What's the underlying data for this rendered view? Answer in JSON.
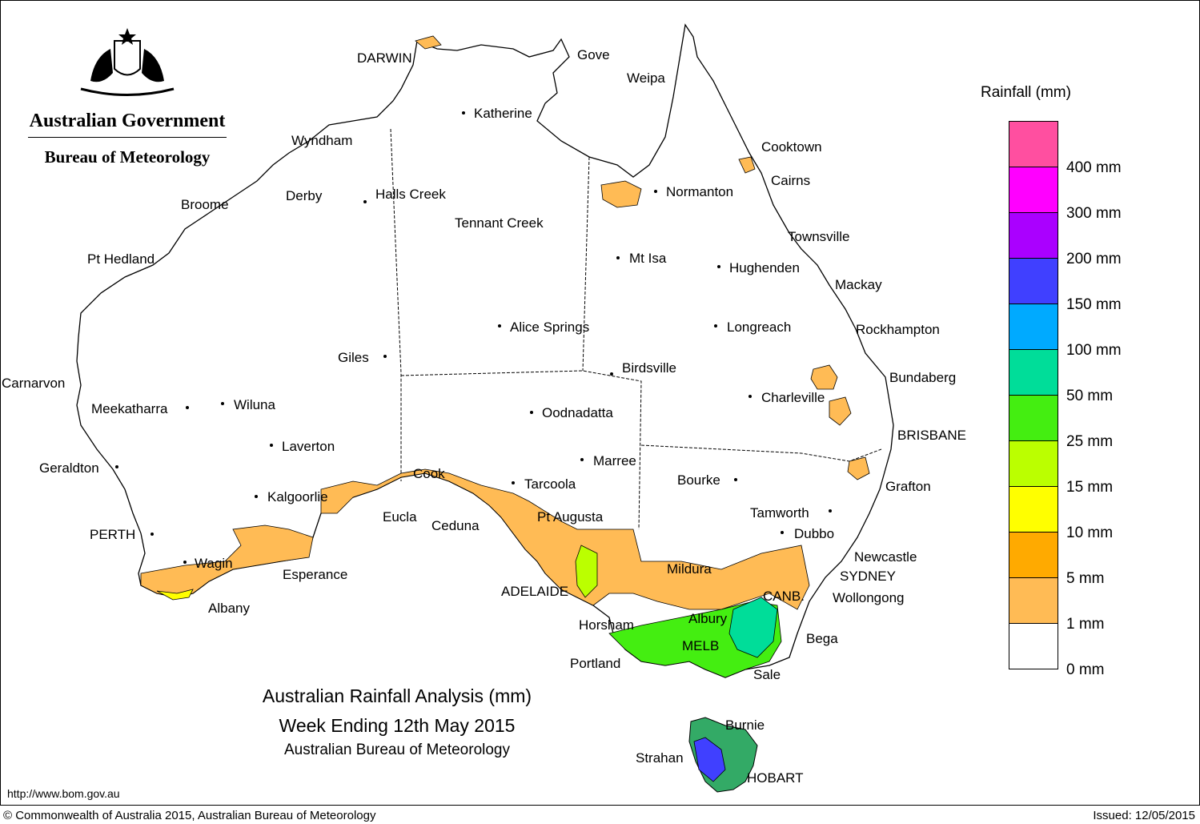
{
  "header": {
    "government": "Australian Government",
    "bureau": "Bureau of Meteorology"
  },
  "title": {
    "line1": "Australian Rainfall Analysis (mm)",
    "line2": "Week Ending 12th May 2015",
    "line3": "Australian Bureau of Meteorology"
  },
  "legend": {
    "title": "Rainfall (mm)",
    "swatches": [
      "#ff4fa0",
      "#ff00ff",
      "#aa00ff",
      "#4040ff",
      "#00aaff",
      "#00dd99",
      "#44ee11",
      "#bbff00",
      "#ffff00",
      "#ffaa00",
      "#ffbb55",
      "#ffffff"
    ],
    "labels": [
      "400 mm",
      "300 mm",
      "200 mm",
      "150 mm",
      "100 mm",
      "50 mm",
      "25 mm",
      "15 mm",
      "10 mm",
      "5 mm",
      "1 mm",
      "0 mm"
    ]
  },
  "places": {
    "darwin": "DARWIN",
    "gove": "Gove",
    "weipa": "Weipa",
    "katherine": "Katherine",
    "wyndham": "Wyndham",
    "cooktown": "Cooktown",
    "cairns": "Cairns",
    "derby": "Derby",
    "halls_creek": "Halls Creek",
    "broome": "Broome",
    "normanton": "Normanton",
    "tennant_creek": "Tennant Creek",
    "townsville": "Townsville",
    "pt_hedland": "Pt Hedland",
    "mt_isa": "Mt Isa",
    "hughenden": "Hughenden",
    "mackay": "Mackay",
    "alice_springs": "Alice Springs",
    "longreach": "Longreach",
    "rockhampton": "Rockhampton",
    "giles": "Giles",
    "birdsville": "Birdsville",
    "carnarvon": "Carnarvon",
    "bundaberg": "Bundaberg",
    "charleville": "Charleville",
    "meekatharra": "Meekatharra",
    "wiluna": "Wiluna",
    "oodnadatta": "Oodnadatta",
    "brisbane": "BRISBANE",
    "laverton": "Laverton",
    "marree": "Marree",
    "geraldton": "Geraldton",
    "cook": "Cook",
    "tarcoola": "Tarcoola",
    "bourke": "Bourke",
    "grafton": "Grafton",
    "kalgoorlie": "Kalgoorlie",
    "eucla": "Eucla",
    "pt_augusta": "Pt Augusta",
    "tamworth": "Tamworth",
    "ceduna": "Ceduna",
    "perth": "PERTH",
    "dubbo": "Dubbo",
    "newcastle": "Newcastle",
    "wagin": "Wagin",
    "mildura": "Mildura",
    "sydney": "SYDNEY",
    "esperance": "Esperance",
    "adelaide": "ADELAIDE",
    "canb": "CANB.",
    "wollongong": "Wollongong",
    "albany": "Albany",
    "albury": "Albury",
    "horsham": "Horsham",
    "bega": "Bega",
    "melb": "MELB",
    "portland": "Portland",
    "sale": "Sale",
    "burnie": "Burnie",
    "strahan": "Strahan",
    "hobart": "HOBART"
  },
  "footer": {
    "url": "http://www.bom.gov.au",
    "copyright": "© Commonwealth of Australia 2015, Australian Bureau of Meteorology",
    "issued": "Issued: 12/05/2015"
  }
}
